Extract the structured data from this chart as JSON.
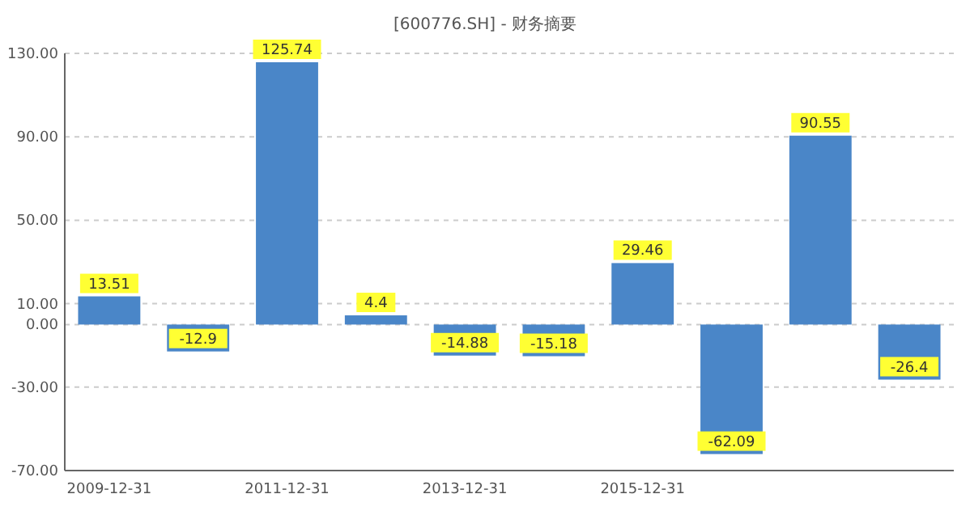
{
  "chart_data": {
    "type": "bar",
    "title": "[600776.SH] - 财务摘要",
    "categories": [
      "2009-12-31",
      null,
      "2011-12-31",
      null,
      "2013-12-31",
      null,
      "2015-12-31",
      null,
      null,
      null
    ],
    "values": [
      13.51,
      -12.9,
      125.74,
      4.4,
      -14.88,
      -15.18,
      29.46,
      -62.09,
      90.55,
      -26.4
    ],
    "color": "#4a86c8",
    "ylim": [
      -70,
      130
    ],
    "yticks": [
      {
        "value": 130,
        "label": "130.00"
      },
      {
        "value": 90,
        "label": "90.00"
      },
      {
        "value": 50,
        "label": "50.00"
      },
      {
        "value": 10,
        "label": "10.00"
      },
      {
        "value": 0,
        "label": "0.00"
      },
      {
        "value": -30,
        "label": "-30.00"
      },
      {
        "value": -70,
        "label": "-70.00"
      }
    ],
    "grid": "y",
    "data_labels": true
  }
}
